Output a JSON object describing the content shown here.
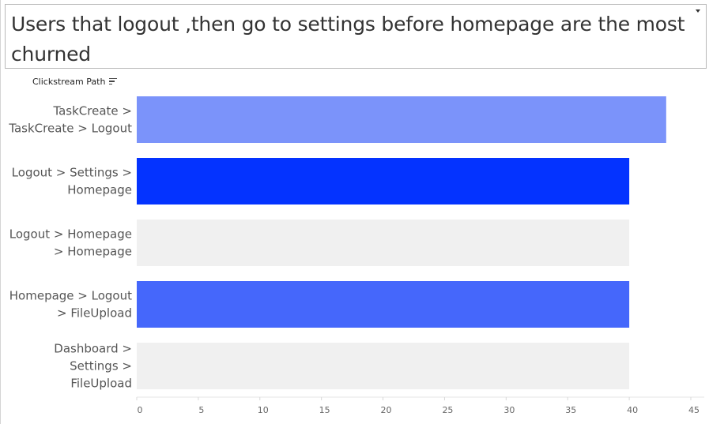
{
  "dashboard": {
    "title": "Users that logout ,then go to settings before homepage are the most churned",
    "dropdown_icon": "caret-down-icon"
  },
  "header": {
    "column_label": "Clickstream Path",
    "sort_icon": "sort-descending-icon"
  },
  "chart_data": {
    "type": "bar",
    "orientation": "horizontal",
    "title": "Users that logout ,then go to settings before homepage are the most churned",
    "ylabel": "Clickstream Path",
    "xlabel": "",
    "categories": [
      "TaskCreate > TaskCreate > Logout",
      "Logout > Settings > Homepage",
      "Logout > Homepage > Homepage",
      "Homepage > Logout > FileUpload",
      "Dashboard > Settings > FileUpload"
    ],
    "category_lines": [
      [
        "TaskCreate >",
        "TaskCreate > Logout"
      ],
      [
        "Logout > Settings >",
        "Homepage"
      ],
      [
        "Logout > Homepage",
        "> Homepage"
      ],
      [
        "Homepage > Logout",
        "> FileUpload"
      ],
      [
        "Dashboard >",
        "Settings >",
        "FileUpload"
      ]
    ],
    "values": [
      43,
      40,
      40,
      40,
      40
    ],
    "colors": [
      "#7b93fa",
      "#0433ff",
      "#f0f0f0",
      "#4567fb",
      "#f0f0f0"
    ],
    "xlim": [
      0,
      45
    ],
    "xticks": [
      0,
      5,
      10,
      15,
      20,
      25,
      30,
      35,
      40,
      45
    ],
    "grid": false,
    "legend": "none"
  }
}
